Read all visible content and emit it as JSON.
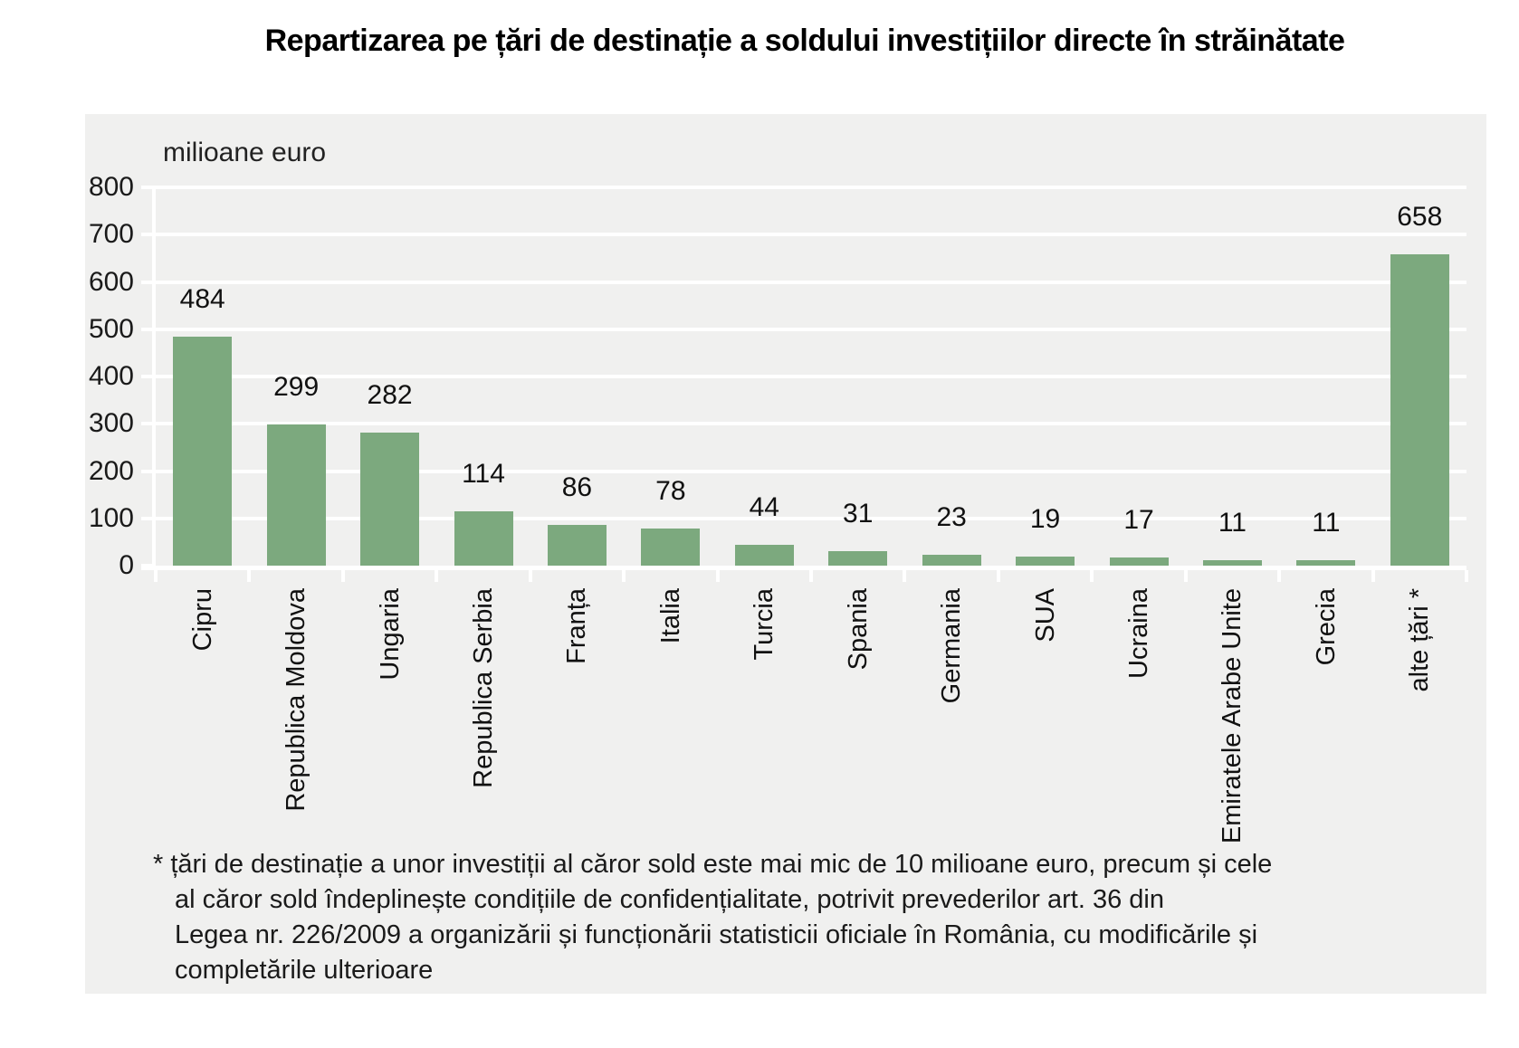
{
  "title": "Repartizarea pe țări de destinație a soldului investițiilor directe în străinătate",
  "chart_data": {
    "type": "bar",
    "title": "Repartizarea pe țări de destinație a soldului investițiilor directe în străinătate",
    "unit_label": "milioane euro",
    "categories": [
      "Cipru",
      "Republica Moldova",
      "Ungaria",
      "Republica Serbia",
      "Franța",
      "Italia",
      "Turcia",
      "Spania",
      "Germania",
      "SUA",
      "Ucraina",
      "Emiratele Arabe Unite",
      "Grecia",
      "alte țări *"
    ],
    "values": [
      484,
      299,
      282,
      114,
      86,
      78,
      44,
      31,
      23,
      19,
      17,
      11,
      11,
      658
    ],
    "xlabel": "",
    "ylabel": "milioane euro",
    "ylim": [
      0,
      800
    ],
    "yticks": [
      0,
      100,
      200,
      300,
      400,
      500,
      600,
      700,
      800
    ],
    "grid": "horizontal",
    "legend": "none",
    "bar_color": "#7ca97e",
    "panel_bg": "#f0f0ef",
    "gridline_color": "#ffffff"
  },
  "footnote": {
    "lines": [
      "* țări de destinație a unor investiții al căror sold este mai mic de 10 milioane euro, precum și cele",
      "al căror sold îndeplinește condițiile de confidențialitate, potrivit prevederilor art. 36 din",
      "Legea nr. 226/2009 a organizării și funcționării statisticii oficiale în România, cu modificările și",
      "completările ulterioare"
    ]
  }
}
